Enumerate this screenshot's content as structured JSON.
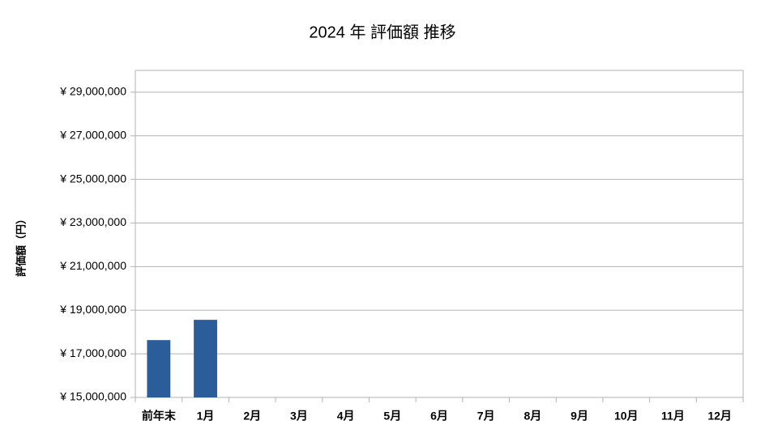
{
  "chart_data": {
    "type": "bar",
    "title": "2024 年 評価額 推移",
    "y_label": "評価額（円）",
    "categories": [
      "前年末",
      "1月",
      "2月",
      "3月",
      "4月",
      "5月",
      "6月",
      "7月",
      "8月",
      "9月",
      "10月",
      "11月",
      "12月"
    ],
    "values": [
      17630000,
      18560000,
      null,
      null,
      null,
      null,
      null,
      null,
      null,
      null,
      null,
      null,
      null
    ],
    "color": "#2a5d9a",
    "ylim": [
      15000000,
      30000000
    ],
    "yticks": [
      {
        "value": 15000000,
        "label": "¥ 15,000,000"
      },
      {
        "value": 17000000,
        "label": "¥ 17,000,000"
      },
      {
        "value": 19000000,
        "label": "¥ 19,000,000"
      },
      {
        "value": 21000000,
        "label": "¥ 21,000,000"
      },
      {
        "value": 23000000,
        "label": "¥ 23,000,000"
      },
      {
        "value": 25000000,
        "label": "¥ 25,000,000"
      },
      {
        "value": 27000000,
        "label": "¥ 27,000,000"
      },
      {
        "value": 29000000,
        "label": "¥ 29,000,000"
      }
    ],
    "grid": true
  }
}
